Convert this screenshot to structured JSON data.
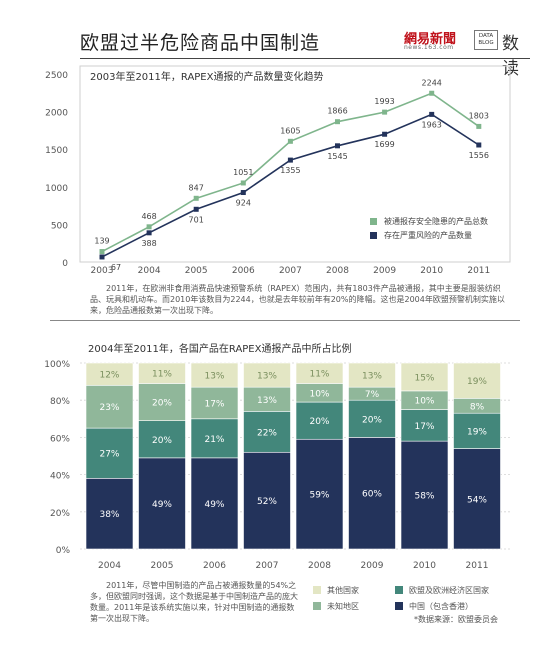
{
  "header": {
    "title": "欧盟过半危险商品中国制造",
    "brand_logo": "網易新聞",
    "brand_sub": "news.163.com",
    "brand_box_line1": "DATA",
    "brand_box_line2": "BLOG",
    "brand_name": "数读"
  },
  "colors": {
    "total_line": "#7fb58c",
    "serious_line": "#23335b",
    "other": "#e3e6c4",
    "unknown": "#90b79a",
    "eu_efta": "#43877b",
    "china": "#23335b"
  },
  "chart_data": [
    {
      "type": "line",
      "title": "2003年至2011年，RAPEX通报的产品数量变化趋势",
      "x": [
        "2003",
        "2004",
        "2005",
        "2006",
        "2007",
        "2008",
        "2009",
        "2010",
        "2011"
      ],
      "series": [
        {
          "name": "被通报存安全隐患的产品总数",
          "values": [
            139,
            468,
            847,
            1051,
            1605,
            1866,
            1993,
            2244,
            1803
          ]
        },
        {
          "name": "存在严重风险的产品数量",
          "values": [
            67,
            388,
            701,
            924,
            1355,
            1545,
            1699,
            1963,
            1556
          ]
        }
      ],
      "yticks": [
        "0",
        "500",
        "1000",
        "1500",
        "2000",
        "2500"
      ],
      "ylim": [
        0,
        2500
      ],
      "legend_position": "bottom-right",
      "grid": false
    },
    {
      "type": "bar",
      "stacked": true,
      "title": "2004年至2011年，各国产品在RAPEX通报产品中所占比例",
      "categories": [
        "2004",
        "2005",
        "2006",
        "2007",
        "2008",
        "2009",
        "2010",
        "2011"
      ],
      "series": [
        {
          "name": "中国（包含香港）",
          "values": [
            38,
            49,
            49,
            52,
            59,
            60,
            58,
            54
          ]
        },
        {
          "name": "欧盟及欧洲经济区国家",
          "values": [
            27,
            20,
            21,
            22,
            20,
            20,
            17,
            19
          ]
        },
        {
          "name": "未知地区",
          "values": [
            23,
            20,
            17,
            13,
            10,
            7,
            10,
            8
          ]
        },
        {
          "name": "其他国家",
          "values": [
            12,
            11,
            13,
            13,
            11,
            13,
            15,
            19
          ]
        }
      ],
      "yticks": [
        "0%",
        "20%",
        "40%",
        "60%",
        "80%",
        "100%"
      ],
      "ylim": [
        0,
        100
      ],
      "legend_position": "bottom-right",
      "grid": true
    }
  ],
  "notes": {
    "line_note": "2011年，在欧洲非食用消费品快速预警系统（RAPEX）范围内，共有1803件产品被通报，其中主要是服装纺织品、玩具和机动车。而2010年该数目为2244，也就是去年较前年有20%的降幅。这也是2004年欧盟预警机制实施以来，危险品通报数第一次出现下降。",
    "bar_note": "2011年，尽管中国制造的产品占被通报数量的54%之多，但欧盟同时强调，这个数据是基于中国制造产品的庞大数量。2011年是该系统实施以来，针对中国制造的通报数第一次出现下降。",
    "source": "*数据来源：欧盟委员会"
  }
}
